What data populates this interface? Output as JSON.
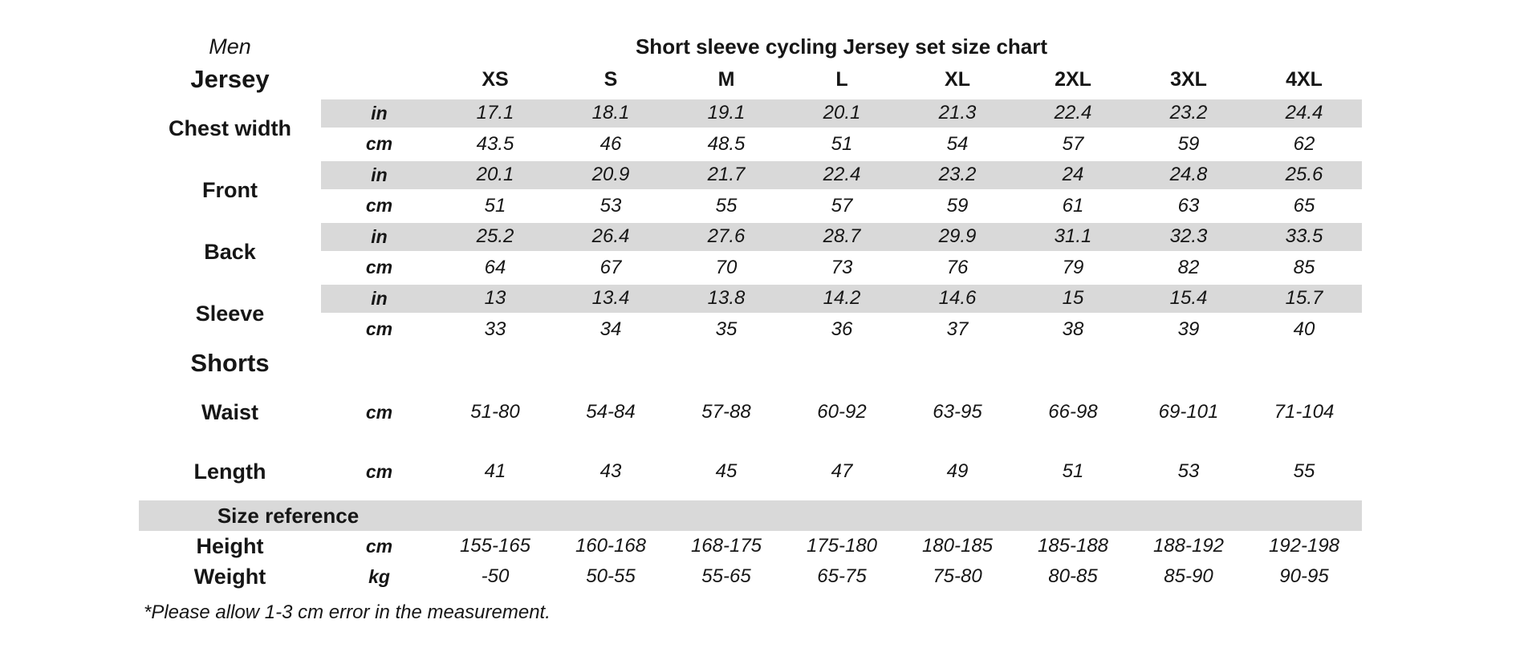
{
  "meta": {
    "background_color": "#ffffff",
    "band_color": "#d9d9d9",
    "text_color": "#161616"
  },
  "header": {
    "gender": "Men",
    "title": "Short sleeve cycling Jersey set size chart"
  },
  "sizes": [
    "XS",
    "S",
    "M",
    "L",
    "XL",
    "2XL",
    "3XL",
    "4XL"
  ],
  "units": {
    "in": "in",
    "cm": "cm",
    "kg": "kg"
  },
  "jersey": {
    "section_label": "Jersey",
    "rows": [
      {
        "label": "Chest width",
        "in": [
          "17.1",
          "18.1",
          "19.1",
          "20.1",
          "21.3",
          "22.4",
          "23.2",
          "24.4"
        ],
        "cm": [
          "43.5",
          "46",
          "48.5",
          "51",
          "54",
          "57",
          "59",
          "62"
        ]
      },
      {
        "label": "Front",
        "in": [
          "20.1",
          "20.9",
          "21.7",
          "22.4",
          "23.2",
          "24",
          "24.8",
          "25.6"
        ],
        "cm": [
          "51",
          "53",
          "55",
          "57",
          "59",
          "61",
          "63",
          "65"
        ]
      },
      {
        "label": "Back",
        "in": [
          "25.2",
          "26.4",
          "27.6",
          "28.7",
          "29.9",
          "31.1",
          "32.3",
          "33.5"
        ],
        "cm": [
          "64",
          "67",
          "70",
          "73",
          "76",
          "79",
          "82",
          "85"
        ]
      },
      {
        "label": "Sleeve",
        "in": [
          "13",
          "13.4",
          "13.8",
          "14.2",
          "14.6",
          "15",
          "15.4",
          "15.7"
        ],
        "cm": [
          "33",
          "34",
          "35",
          "36",
          "37",
          "38",
          "39",
          "40"
        ]
      }
    ]
  },
  "shorts": {
    "section_label": "Shorts",
    "rows": [
      {
        "label": "Waist",
        "unit": "cm",
        "values": [
          "51-80",
          "54-84",
          "57-88",
          "60-92",
          "63-95",
          "66-98",
          "69-101",
          "71-104"
        ]
      },
      {
        "label": "Length",
        "unit": "cm",
        "values": [
          "41",
          "43",
          "45",
          "47",
          "49",
          "51",
          "53",
          "55"
        ]
      }
    ]
  },
  "reference": {
    "section_label": "Size reference",
    "rows": [
      {
        "label": "Height",
        "unit": "cm",
        "values": [
          "155-165",
          "160-168",
          "168-175",
          "175-180",
          "180-185",
          "185-188",
          "188-192",
          "192-198"
        ]
      },
      {
        "label": "Weight",
        "unit": "kg",
        "values": [
          "-50",
          "50-55",
          "55-65",
          "65-75",
          "75-80",
          "80-85",
          "85-90",
          "90-95"
        ]
      }
    ]
  },
  "footnote": "*Please allow 1-3 cm error in the measurement."
}
